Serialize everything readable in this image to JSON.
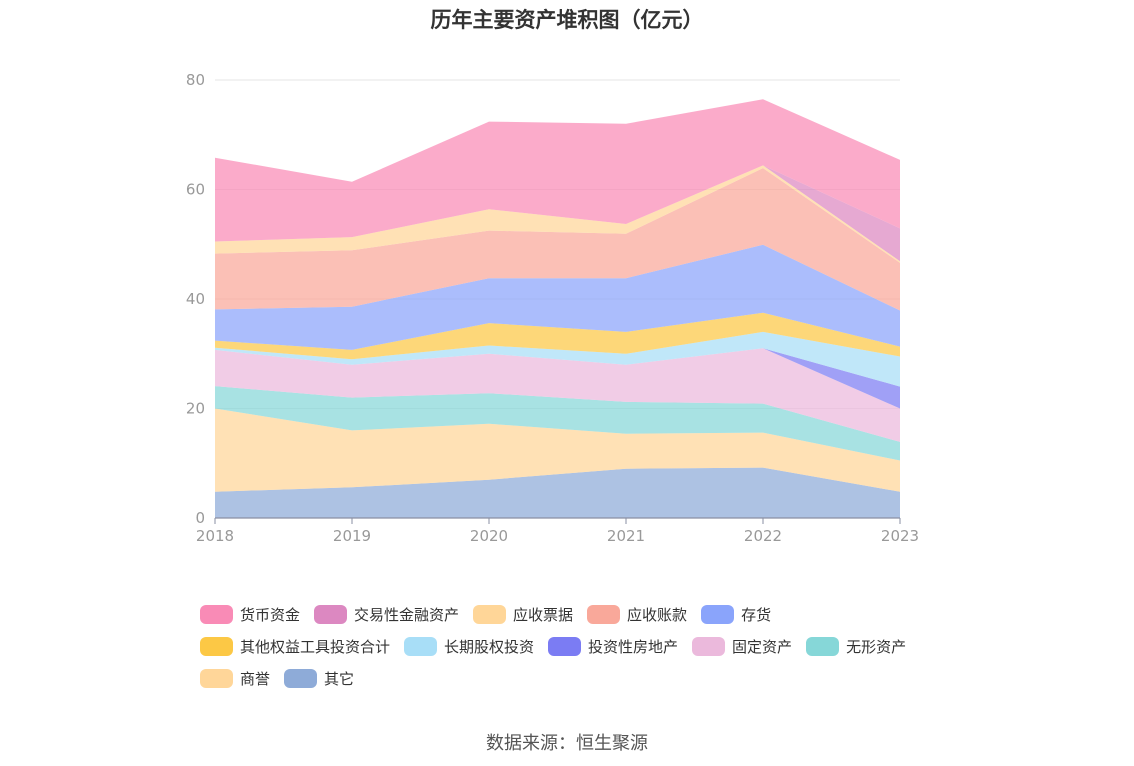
{
  "chart_data": {
    "type": "area",
    "stacked": true,
    "title": "历年主要资产堆积图（亿元）",
    "x": [
      "2018",
      "2019",
      "2020",
      "2021",
      "2022",
      "2023"
    ],
    "ylim": [
      0,
      80
    ],
    "yticks": [
      0,
      20,
      40,
      60,
      80
    ],
    "grid": "horizontal",
    "legend_position": "bottom",
    "series": [
      {
        "name": "其它",
        "color": "#8eabd8",
        "values": [
          4.8,
          5.6,
          7.0,
          9.0,
          9.2,
          4.8
        ]
      },
      {
        "name": "商誉",
        "color": "#ffd699",
        "values": [
          15.2,
          10.4,
          10.2,
          6.4,
          6.4,
          5.7
        ]
      },
      {
        "name": "无形资产",
        "color": "#86d7d8",
        "values": [
          4.1,
          6.0,
          5.6,
          5.8,
          5.3,
          3.4
        ]
      },
      {
        "name": "固定资产",
        "color": "#ebb9dc",
        "values": [
          6.6,
          6.0,
          7.2,
          6.8,
          10.1,
          6.1
        ]
      },
      {
        "name": "投资性房地产",
        "color": "#7b7cf3",
        "values": [
          0.0,
          0.0,
          0.0,
          0.0,
          0.0,
          4.0
        ]
      },
      {
        "name": "长期股权投资",
        "color": "#a8def7",
        "values": [
          0.4,
          1.0,
          1.5,
          2.0,
          3.0,
          5.5
        ]
      },
      {
        "name": "其他权益工具投资合计",
        "color": "#fcc845",
        "values": [
          1.3,
          1.7,
          4.1,
          4.0,
          3.5,
          1.8
        ]
      },
      {
        "name": "存货",
        "color": "#8aa4fb",
        "values": [
          5.7,
          7.9,
          8.2,
          9.8,
          12.4,
          6.6
        ]
      },
      {
        "name": "应收账款",
        "color": "#f9a89a",
        "values": [
          10.2,
          10.3,
          8.7,
          8.1,
          14.0,
          8.7
        ]
      },
      {
        "name": "应收票据",
        "color": "#ffd698",
        "values": [
          2.2,
          2.4,
          3.9,
          1.8,
          0.5,
          0.3
        ]
      },
      {
        "name": "交易性金融资产",
        "color": "#dc88c1",
        "values": [
          0.0,
          0.0,
          0.0,
          0.0,
          0.0,
          6.0
        ]
      },
      {
        "name": "货币资金",
        "color": "#f98bb6",
        "values": [
          15.3,
          10.1,
          16.0,
          18.3,
          12.1,
          12.5
        ]
      }
    ]
  },
  "legend": {
    "rows": [
      [
        "货币资金",
        "交易性金融资产",
        "应收票据",
        "应收账款",
        "存货"
      ],
      [
        "其他权益工具投资合计",
        "长期股权投资",
        "投资性房地产",
        "固定资产",
        "无形资产"
      ],
      [
        "商誉",
        "其它"
      ]
    ],
    "colors": {
      "货币资金": "#f98bb6",
      "交易性金融资产": "#dc88c1",
      "应收票据": "#ffd698",
      "应收账款": "#f9a89a",
      "存货": "#8aa4fb",
      "其他权益工具投资合计": "#fcc845",
      "长期股权投资": "#a8def7",
      "投资性房地产": "#7b7cf3",
      "固定资产": "#ebb9dc",
      "无形资产": "#86d7d8",
      "商誉": "#ffd699",
      "其它": "#8eabd8"
    }
  },
  "source": "数据来源：恒生聚源"
}
